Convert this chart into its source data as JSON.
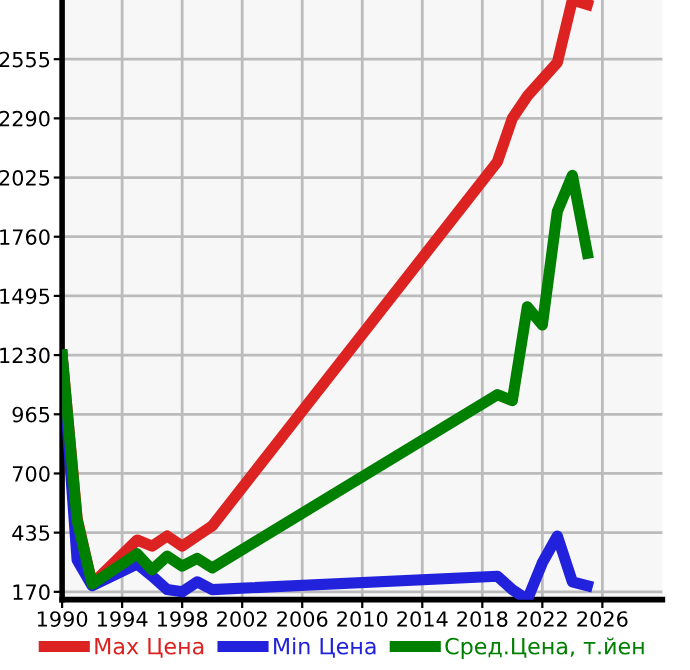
{
  "chart_data": {
    "type": "line",
    "x": [
      1990,
      1991,
      1992,
      1995,
      1996,
      1997,
      1998,
      1999,
      2000,
      2019,
      2020,
      2021,
      2022,
      2023,
      2024,
      2025
    ],
    "series": [
      {
        "name": "Max Цена",
        "color": "#dd2222",
        "values": [
          1230,
          500,
          205,
          402,
          375,
          420,
          375,
          420,
          465,
          2095,
          2290,
          2390,
          2465,
          2540,
          2820,
          2800
        ]
      },
      {
        "name": "Min Цена",
        "color": "#2222dd",
        "values": [
          1230,
          313,
          197,
          295,
          240,
          180,
          170,
          215,
          180,
          240,
          180,
          135,
          300,
          420,
          215,
          197
        ]
      },
      {
        "name": "Сред.Цена, т.йен",
        "color": "#008000",
        "values": [
          1230,
          490,
          205,
          340,
          268,
          330,
          285,
          320,
          277,
          1053,
          1026,
          1446,
          1365,
          1874,
          2035,
          1686
        ]
      }
    ],
    "xlim": [
      1990,
      2030
    ],
    "xticks": [
      1990,
      1994,
      1998,
      2002,
      2006,
      2010,
      2014,
      2018,
      2022,
      2026
    ],
    "ylim": [
      135,
      2820
    ],
    "yticks": [
      170,
      435,
      700,
      965,
      1230,
      1495,
      1760,
      2025,
      2290,
      2555
    ],
    "grid": true,
    "legend": "bottom",
    "marker": "none",
    "line_style": "solid"
  }
}
